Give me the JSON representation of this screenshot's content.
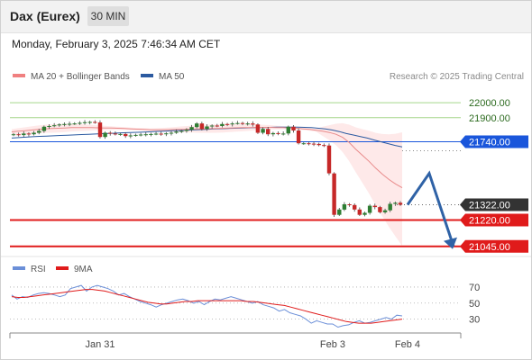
{
  "header": {
    "instrument": "Dax (Eurex)",
    "timeframe": "30 MIN",
    "datetime": "Monday, February 3, 2025 7:46:34 AM CET"
  },
  "legend": {
    "ma20_bollinger": "MA 20 + Bollinger Bands",
    "ma50": "MA 50",
    "copyright": "Research © 2025 Trading Central"
  },
  "rsi_legend": {
    "rsi": "RSI",
    "ma9": "9MA"
  },
  "colors": {
    "bull": "#2e7d32",
    "bear": "#c62828",
    "resistance_line": "#a5d68a",
    "pivot_line": "#1a56db",
    "support_line": "#e01b1b",
    "bollinger_fill": "#fde2e2",
    "ma20": "#e88a8a",
    "ma50": "#2c5aa0",
    "arrow": "#2f62a6",
    "rsi": "#6b8fd8",
    "rsi_ma": "#e01b1b",
    "last_price_tag": "#333333"
  },
  "chart_data": [
    {
      "type": "line",
      "chart": "price",
      "ylim": [
        20990,
        22120
      ],
      "x_ticks": [
        "Jan 31",
        "Feb 3",
        "Feb 4"
      ],
      "levels": [
        {
          "value": 22000.0,
          "label": "22000.00",
          "kind": "resistance"
        },
        {
          "value": 21900.0,
          "label": "21900.00",
          "kind": "resistance"
        },
        {
          "value": 21740.0,
          "label": "21740.00",
          "kind": "pivot"
        },
        {
          "value": 21322.0,
          "label": "21322.00",
          "kind": "last"
        },
        {
          "value": 21220.0,
          "label": "21220.00",
          "kind": "support"
        },
        {
          "value": 21045.0,
          "label": "21045.00",
          "kind": "support"
        }
      ],
      "candles_close": [
        21790,
        21785,
        21795,
        21790,
        21800,
        21812,
        21840,
        21845,
        21850,
        21855,
        21858,
        21860,
        21862,
        21866,
        21870,
        21872,
        21868,
        21772,
        21800,
        21795,
        21790,
        21792,
        21778,
        21782,
        21786,
        21788,
        21790,
        21792,
        21794,
        21790,
        21796,
        21800,
        21808,
        21812,
        21820,
        21838,
        21862,
        21825,
        21842,
        21848,
        21845,
        21858,
        21856,
        21862,
        21865,
        21860,
        21862,
        21855,
        21800,
        21825,
        21790,
        21798,
        21792,
        21795,
        21840,
        21815,
        21730,
        21730,
        21728,
        21726,
        21718,
        21715,
        21530,
        21255,
        21290,
        21325,
        21320,
        21290,
        21255,
        21268,
        21315,
        21306,
        21272,
        21285,
        21328,
        21335,
        21322
      ],
      "ma20": [
        21806,
        21810,
        21814,
        21818,
        21822,
        21826,
        21828,
        21830,
        21832,
        21834,
        21834,
        21834,
        21834,
        21833,
        21832,
        21831,
        21830,
        21828,
        21826,
        21824,
        21822,
        21820,
        21820,
        21820,
        21821,
        21822,
        21823,
        21824,
        21825,
        21826,
        21827,
        21828,
        21830,
        21832,
        21833,
        21834,
        21835,
        21836,
        21836,
        21836,
        21835,
        21834,
        21832,
        21830,
        21826,
        21822,
        21816,
        21810,
        21802,
        21790,
        21770,
        21735,
        21690,
        21650,
        21610,
        21565,
        21525,
        21490,
        21460,
        21435
      ],
      "ma50": [
        21765,
        21768,
        21771,
        21774,
        21776,
        21778,
        21780,
        21782,
        21784,
        21786,
        21788,
        21790,
        21792,
        21794,
        21796,
        21798,
        21800,
        21802,
        21803,
        21805,
        21807,
        21809,
        21811,
        21813,
        21815,
        21817,
        21819,
        21821,
        21823,
        21825,
        21827,
        21829,
        21830,
        21831,
        21833,
        21834,
        21835,
        21836,
        21837,
        21838,
        21838,
        21838,
        21836,
        21834,
        21830,
        21825,
        21818,
        21808,
        21795,
        21785,
        21775,
        21765,
        21752,
        21740,
        21728,
        21716,
        21706
      ],
      "forecast_path": [
        21322,
        21530,
        21045
      ]
    },
    {
      "type": "line",
      "chart": "rsi",
      "ylim": [
        15,
        80
      ],
      "y_ticks": [
        "70",
        "50",
        "30"
      ],
      "rsi": [
        60,
        55,
        58,
        57,
        60,
        62,
        63,
        62,
        60,
        58,
        60,
        68,
        70,
        72,
        65,
        70,
        72,
        70,
        68,
        65,
        60,
        62,
        58,
        55,
        52,
        50,
        48,
        45,
        48,
        50,
        52,
        54,
        55,
        53,
        50,
        52,
        48,
        52,
        55,
        54,
        56,
        58,
        56,
        54,
        52,
        50,
        52,
        48,
        46,
        44,
        40,
        42,
        38,
        36,
        34,
        30,
        25,
        28,
        26,
        24,
        24,
        20,
        22,
        23,
        26,
        28,
        25,
        26,
        28,
        30,
        32,
        30,
        35,
        34
      ],
      "rsi_ma": [
        58,
        57,
        57,
        58,
        59,
        60,
        61,
        62,
        63,
        64,
        65,
        66,
        67,
        67,
        66,
        65,
        63,
        61,
        59,
        57,
        55,
        53,
        51,
        50,
        49,
        49,
        50,
        51,
        52,
        52,
        53,
        53,
        53,
        53,
        53,
        53,
        53,
        53,
        52,
        52,
        51,
        50,
        49,
        48,
        47,
        45,
        43,
        41,
        39,
        37,
        35,
        33,
        31,
        29,
        27,
        26,
        25,
        25,
        25,
        26,
        27,
        28,
        29,
        30
      ]
    }
  ]
}
